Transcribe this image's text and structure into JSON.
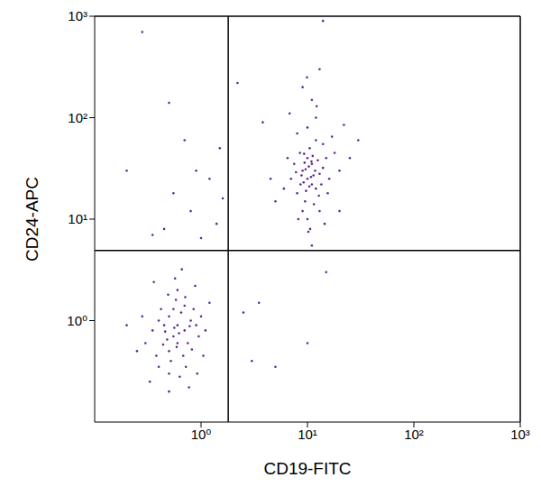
{
  "chart_data": {
    "type": "scatter",
    "x_label": "CD19-FITC",
    "y_label": "CD24-APC",
    "log": true,
    "xlim": [
      0.1,
      1000
    ],
    "ylim": [
      0.1,
      1000
    ],
    "xticks": [
      {
        "value": 1,
        "label": "10⁰"
      },
      {
        "value": 10,
        "label": "10¹"
      },
      {
        "value": 100,
        "label": "10²"
      },
      {
        "value": 1000,
        "label": "10³"
      }
    ],
    "yticks": [
      {
        "value": 1,
        "label": "10⁰"
      },
      {
        "value": 10,
        "label": "10¹"
      },
      {
        "value": 100,
        "label": "10²"
      },
      {
        "value": 1000,
        "label": "10³"
      }
    ],
    "quadrant_x": 1.8,
    "quadrant_y": 4.9,
    "color": "#5e2a8c",
    "marker": "dot",
    "x": [
      0.6,
      0.5,
      0.7,
      0.55,
      0.65,
      0.45,
      0.8,
      0.6,
      0.5,
      0.7,
      0.4,
      0.9,
      0.55,
      0.62,
      0.48,
      0.75,
      0.35,
      0.58,
      0.68,
      0.52,
      0.85,
      0.42,
      0.3,
      0.95,
      0.6,
      0.5,
      0.72,
      0.38,
      1.0,
      0.56,
      0.46,
      0.78,
      0.59,
      0.44,
      0.82,
      0.71,
      0.49,
      0.28,
      1.1,
      0.63,
      0.4,
      0.25,
      0.88,
      0.57,
      0.66,
      0.36,
      1.2,
      0.2,
      0.33,
      0.77,
      0.5,
      1.05,
      0.92,
      0.28,
      0.5,
      0.7,
      0.9,
      0.55,
      1.2,
      0.8,
      1.4,
      0.45,
      1.0,
      1.5,
      0.35,
      0.2,
      1.6,
      10,
      9,
      12,
      11,
      8,
      13,
      10,
      9.5,
      11,
      14,
      7,
      10.5,
      12,
      8.5,
      15,
      9,
      11.5,
      10,
      13,
      6,
      16,
      10,
      12,
      8,
      11,
      9,
      7.5,
      14,
      18,
      20,
      5,
      6.5,
      10.8,
      9.2,
      11.8,
      8.8,
      12.5,
      9.7,
      10.3,
      13.5,
      7.8,
      11.2,
      9.4,
      12.8,
      10.6,
      8.2,
      15.5,
      17,
      6.8,
      9.9,
      13,
      12.2,
      25,
      30,
      4.5,
      3.8,
      14.5,
      10.2,
      11,
      20,
      22,
      9.6,
      10.4,
      11.4,
      8.6,
      10.9,
      9.3,
      15,
      10,
      3,
      5,
      2.5,
      14,
      2.2,
      3.5
    ],
    "values": [
      0.9,
      1.1,
      0.8,
      0.7,
      1.2,
      0.9,
      1.0,
      0.6,
      0.5,
      1.4,
      1.0,
      0.9,
      1.3,
      0.75,
      0.65,
      0.6,
      0.8,
      1.6,
      0.45,
      0.4,
      1.3,
      1.3,
      0.6,
      0.7,
      2.0,
      0.3,
      0.35,
      0.45,
      1.1,
      0.85,
      0.78,
      0.88,
      0.55,
      0.58,
      0.52,
      1.7,
      1.8,
      1.1,
      0.8,
      0.28,
      0.35,
      0.5,
      2.2,
      2.6,
      3.2,
      2.4,
      1.5,
      0.9,
      0.25,
      0.22,
      0.2,
      0.45,
      0.3,
      700,
      140,
      60,
      30,
      18,
      25,
      12,
      9,
      8,
      6.5,
      50,
      7,
      30,
      16,
      25,
      30,
      20,
      35,
      18,
      28,
      40,
      15,
      22,
      32,
      25,
      50,
      60,
      45,
      40,
      12,
      14,
      10,
      12,
      20,
      25,
      80,
      100,
      70,
      150,
      200,
      35,
      55,
      45,
      30,
      15,
      40,
      26,
      23,
      30,
      27,
      38,
      19,
      33,
      22,
      29,
      42,
      36,
      17,
      8,
      10,
      18,
      65,
      110,
      250,
      300,
      130,
      40,
      60,
      25,
      90,
      9,
      7.5,
      5.5,
      12,
      85,
      31,
      21,
      27,
      22,
      37,
      44,
      3,
      0.6,
      0.4,
      0.35,
      1.2,
      900,
      220,
      1.5
    ]
  }
}
